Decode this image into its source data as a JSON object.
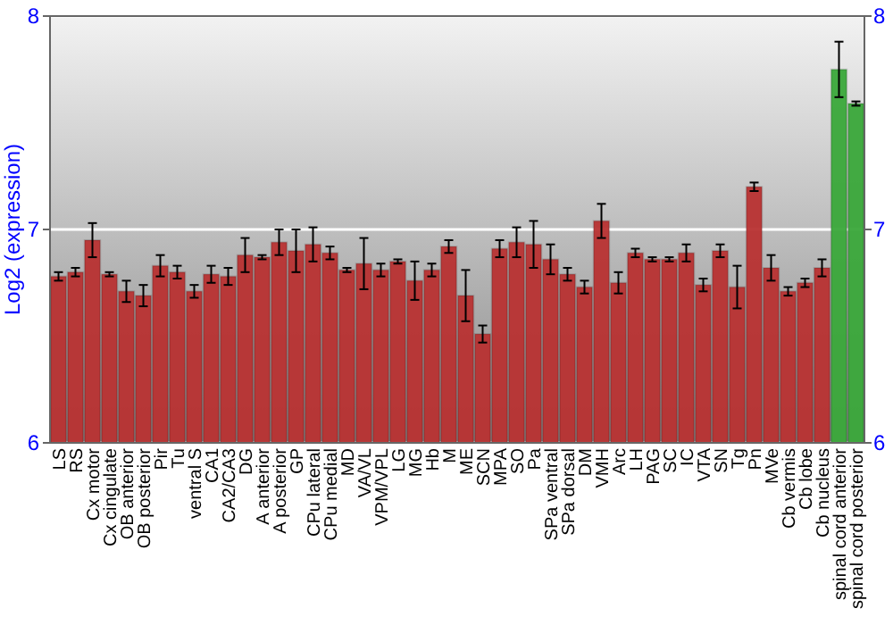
{
  "chart_data": {
    "type": "bar",
    "ylabel": "Log2 (expression)",
    "categories": [
      "LS",
      "RS",
      "Cx motor",
      "Cx cingulate",
      "OB anterior",
      "OB posterior",
      "Pir",
      "Tu",
      "ventral S",
      "CA1",
      "CA2/CA3",
      "DG",
      "A anterior",
      "A posterior",
      "GP",
      "CPu lateral",
      "CPu medial",
      "MD",
      "VA/VL",
      "VPM/VPL",
      "LG",
      "MG",
      "Hb",
      "M",
      "ME",
      "SCN",
      "MPA",
      "SO",
      "Pa",
      "SPa ventral",
      "SPa dorsal",
      "DM",
      "VMH",
      "Arc",
      "LH",
      "PAG",
      "SC",
      "IC",
      "VTA",
      "SN",
      "Tg",
      "Pn",
      "MVe",
      "Cb vermis",
      "Cb lobe",
      "Cb nucleus",
      "spinal cord anterior",
      "spinal cord posterior"
    ],
    "values": [
      6.78,
      6.8,
      6.95,
      6.79,
      6.71,
      6.69,
      6.83,
      6.8,
      6.71,
      6.79,
      6.78,
      6.88,
      6.87,
      6.94,
      6.9,
      6.93,
      6.89,
      6.81,
      6.84,
      6.81,
      6.85,
      6.76,
      6.81,
      6.92,
      6.69,
      6.51,
      6.91,
      6.94,
      6.93,
      6.86,
      6.79,
      6.73,
      7.04,
      6.75,
      6.89,
      6.86,
      6.86,
      6.89,
      6.74,
      6.9,
      6.73,
      7.2,
      6.82,
      6.71,
      6.75,
      6.82,
      7.75,
      7.59
    ],
    "errors": [
      0.02,
      0.02,
      0.08,
      0.01,
      0.05,
      0.05,
      0.05,
      0.03,
      0.03,
      0.04,
      0.04,
      0.08,
      0.01,
      0.06,
      0.1,
      0.08,
      0.03,
      0.01,
      0.12,
      0.03,
      0.01,
      0.09,
      0.03,
      0.03,
      0.12,
      0.04,
      0.04,
      0.07,
      0.11,
      0.07,
      0.03,
      0.03,
      0.08,
      0.05,
      0.02,
      0.01,
      0.01,
      0.04,
      0.03,
      0.03,
      0.1,
      0.02,
      0.06,
      0.02,
      0.02,
      0.04,
      0.13,
      0.01
    ],
    "colors": [
      "#b83232",
      "#b83232",
      "#b83232",
      "#b83232",
      "#b83232",
      "#b83232",
      "#b83232",
      "#b83232",
      "#b83232",
      "#b83232",
      "#b83232",
      "#b83232",
      "#b83232",
      "#b83232",
      "#b83232",
      "#b83232",
      "#b83232",
      "#b83232",
      "#b83232",
      "#b83232",
      "#b83232",
      "#b83232",
      "#b83232",
      "#b83232",
      "#b83232",
      "#b83232",
      "#b83232",
      "#b83232",
      "#b83232",
      "#b83232",
      "#b83232",
      "#b83232",
      "#b83232",
      "#b83232",
      "#b83232",
      "#b83232",
      "#b83232",
      "#b83232",
      "#b83232",
      "#b83232",
      "#b83232",
      "#b83232",
      "#b83232",
      "#b83232",
      "#b83232",
      "#b83232",
      "#3aa83a",
      "#3aa83a"
    ],
    "ylim": [
      6,
      8
    ],
    "yticks": [
      6,
      7,
      8
    ],
    "y2lim": [
      6,
      8
    ],
    "y2ticks": [
      6,
      7,
      8
    ],
    "grid": "y"
  }
}
